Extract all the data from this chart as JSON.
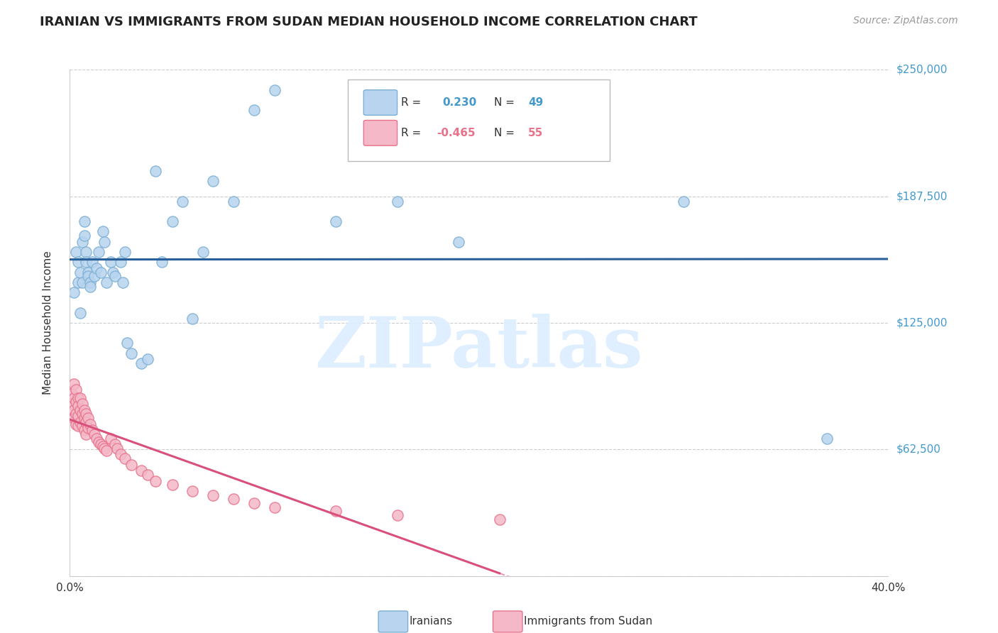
{
  "title": "IRANIAN VS IMMIGRANTS FROM SUDAN MEDIAN HOUSEHOLD INCOME CORRELATION CHART",
  "source": "Source: ZipAtlas.com",
  "ylabel": "Median Household Income",
  "yticks": [
    0,
    62500,
    125000,
    187500,
    250000
  ],
  "ytick_labels": [
    "",
    "$62,500",
    "$125,000",
    "$187,500",
    "$250,000"
  ],
  "xmin": 0.0,
  "xmax": 0.4,
  "ymin": 0,
  "ymax": 250000,
  "watermark": "ZIPatlas",
  "blue_color": "#7bafd4",
  "blue_fill": "#b8d4ee",
  "pink_color": "#e8728a",
  "pink_fill": "#f4b8c8",
  "trend_blue": "#2a6099",
  "trend_pink": "#d9507a",
  "iranians_x": [
    0.002,
    0.003,
    0.004,
    0.004,
    0.005,
    0.005,
    0.006,
    0.006,
    0.007,
    0.007,
    0.008,
    0.008,
    0.009,
    0.009,
    0.01,
    0.01,
    0.011,
    0.012,
    0.013,
    0.014,
    0.015,
    0.016,
    0.017,
    0.018,
    0.02,
    0.021,
    0.022,
    0.025,
    0.026,
    0.027,
    0.028,
    0.03,
    0.035,
    0.038,
    0.042,
    0.045,
    0.05,
    0.055,
    0.06,
    0.065,
    0.07,
    0.08,
    0.09,
    0.1,
    0.13,
    0.16,
    0.19,
    0.3,
    0.37
  ],
  "iranians_y": [
    140000,
    160000,
    155000,
    145000,
    150000,
    130000,
    165000,
    145000,
    175000,
    168000,
    160000,
    155000,
    150000,
    148000,
    145000,
    143000,
    155000,
    148000,
    152000,
    160000,
    150000,
    170000,
    165000,
    145000,
    155000,
    150000,
    148000,
    155000,
    145000,
    160000,
    115000,
    110000,
    105000,
    107000,
    200000,
    155000,
    175000,
    185000,
    127000,
    160000,
    195000,
    185000,
    230000,
    240000,
    175000,
    185000,
    165000,
    185000,
    68000
  ],
  "sudan_x": [
    0.001,
    0.001,
    0.002,
    0.002,
    0.002,
    0.002,
    0.003,
    0.003,
    0.003,
    0.003,
    0.004,
    0.004,
    0.004,
    0.004,
    0.005,
    0.005,
    0.005,
    0.006,
    0.006,
    0.006,
    0.007,
    0.007,
    0.007,
    0.008,
    0.008,
    0.008,
    0.009,
    0.009,
    0.01,
    0.011,
    0.012,
    0.013,
    0.014,
    0.015,
    0.016,
    0.017,
    0.018,
    0.02,
    0.022,
    0.023,
    0.025,
    0.027,
    0.03,
    0.035,
    0.038,
    0.042,
    0.05,
    0.06,
    0.07,
    0.08,
    0.09,
    0.1,
    0.13,
    0.16,
    0.21
  ],
  "sudan_y": [
    90000,
    85000,
    95000,
    88000,
    82000,
    78000,
    92000,
    86000,
    80000,
    75000,
    88000,
    84000,
    79000,
    74000,
    88000,
    82000,
    76000,
    85000,
    80000,
    74000,
    82000,
    78000,
    72000,
    80000,
    76000,
    70000,
    78000,
    73000,
    75000,
    72000,
    70000,
    68000,
    66000,
    65000,
    64000,
    63000,
    62000,
    68000,
    65000,
    63000,
    60000,
    58000,
    55000,
    52000,
    50000,
    47000,
    45000,
    42000,
    40000,
    38000,
    36000,
    34000,
    32000,
    30000,
    28000
  ]
}
